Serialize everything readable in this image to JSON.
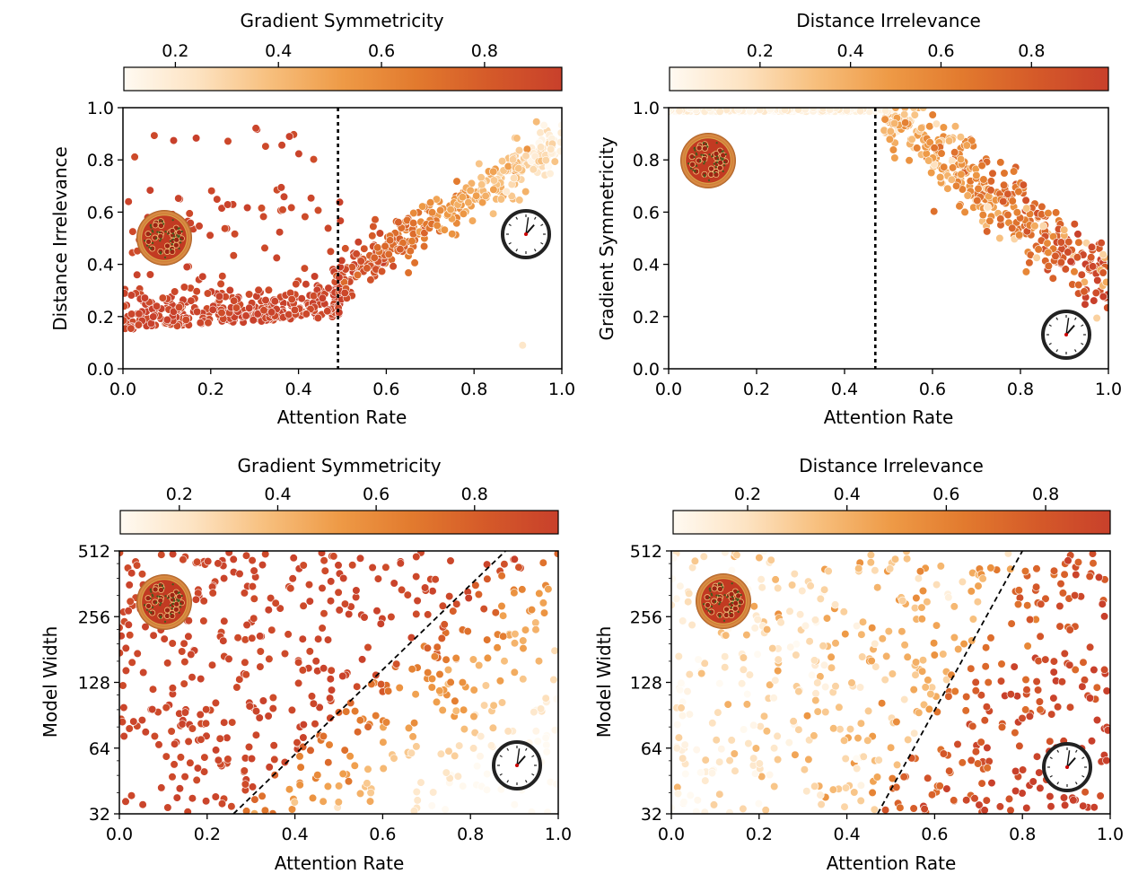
{
  "colormap": {
    "stops": [
      "#fffaf2",
      "#fde3c2",
      "#f7bf7d",
      "#ee9a46",
      "#e27a2e",
      "#d55a29",
      "#c8402b"
    ]
  },
  "chart_data": [
    {
      "type": "scatter",
      "title": "",
      "xlabel": "Attention Rate",
      "ylabel": "Distance Irrelevance",
      "xlim": [
        0.0,
        1.0
      ],
      "ylim": [
        0.0,
        1.0
      ],
      "yscale": "linear",
      "xticks": [
        "0.0",
        "0.2",
        "0.4",
        "0.6",
        "0.8",
        "1.0"
      ],
      "yticks": [
        "0.0",
        "0.2",
        "0.4",
        "0.6",
        "0.8",
        "1.0"
      ],
      "colorbar": {
        "label": "Gradient Symmetricity",
        "range": [
          0.1,
          0.95
        ],
        "ticks": [
          "0.2",
          "0.4",
          "0.6",
          "0.8"
        ]
      },
      "color_variable": "Gradient Symmetricity",
      "boundary": {
        "style": "vertical-dotted",
        "x": 0.49
      },
      "icons": [
        "pizza-icon",
        "clock-icon"
      ],
      "point_count": 780,
      "summary": "For attention rate below ~0.49 distance irrelevance clusters near 0.15-0.3 with high gradient symmetricity (red); above 0.49 distance irrelevance rises from ~0.4 to ~0.95 and gradient symmetricity falls (orange to pale)."
    },
    {
      "type": "scatter",
      "title": "",
      "xlabel": "Attention Rate",
      "ylabel": "Gradient Symmetricity",
      "xlim": [
        0.0,
        1.0
      ],
      "ylim": [
        0.0,
        1.0
      ],
      "yscale": "linear",
      "xticks": [
        "0.0",
        "0.2",
        "0.4",
        "0.6",
        "0.8",
        "1.0"
      ],
      "yticks": [
        "0.0",
        "0.2",
        "0.4",
        "0.6",
        "0.8",
        "1.0"
      ],
      "colorbar": {
        "label": "Distance Irrelevance",
        "range": [
          0.0,
          0.97
        ],
        "ticks": [
          "0.2",
          "0.4",
          "0.6",
          "0.8"
        ]
      },
      "color_variable": "Distance Irrelevance",
      "boundary": {
        "style": "vertical-dotted",
        "x": 0.47
      },
      "icons": [
        "pizza-icon",
        "clock-icon"
      ],
      "point_count": 780,
      "summary": "For attention rate below ~0.47 gradient symmetricity is ~1.0 with low distance irrelevance (pale); above 0.47 gradient symmetricity declines from ~0.95 to ~0.2 while distance irrelevance colors shift to orange-red."
    },
    {
      "type": "scatter",
      "title": "",
      "xlabel": "Attention Rate",
      "ylabel": "Model Width",
      "xlim": [
        0.0,
        1.0
      ],
      "ylim": [
        32,
        512
      ],
      "yscale": "log2",
      "xticks": [
        "0.0",
        "0.2",
        "0.4",
        "0.6",
        "0.8",
        "1.0"
      ],
      "yticks": [
        "32",
        "64",
        "128",
        "256",
        "512"
      ],
      "colorbar": {
        "label": "Gradient Symmetricity",
        "range": [
          0.08,
          0.97
        ],
        "ticks": [
          "0.2",
          "0.4",
          "0.6",
          "0.8"
        ]
      },
      "color_variable": "Gradient Symmetricity",
      "boundary": {
        "style": "dashed-line",
        "from": [
          0.26,
          32
        ],
        "to": [
          0.88,
          512
        ]
      },
      "icons": [
        "pizza-icon",
        "clock-icon"
      ],
      "point_count": 560,
      "summary": "Points left of the dashed diagonal have high gradient symmetricity (red); right of it colors fade to orange and pale toward attention rate 1.0, especially at small widths."
    },
    {
      "type": "scatter",
      "title": "",
      "xlabel": "Attention Rate",
      "ylabel": "Model Width",
      "xlim": [
        0.0,
        1.0
      ],
      "ylim": [
        32,
        512
      ],
      "yscale": "log2",
      "xticks": [
        "0.0",
        "0.2",
        "0.4",
        "0.6",
        "0.8",
        "1.0"
      ],
      "yticks": [
        "32",
        "64",
        "128",
        "256",
        "512"
      ],
      "colorbar": {
        "label": "Distance Irrelevance",
        "range": [
          0.05,
          0.93
        ],
        "ticks": [
          "0.2",
          "0.4",
          "0.6",
          "0.8"
        ]
      },
      "color_variable": "Distance Irrelevance",
      "boundary": {
        "style": "dashed-line",
        "from": [
          0.47,
          32
        ],
        "to": [
          0.8,
          512
        ]
      },
      "icons": [
        "pizza-icon",
        "clock-icon"
      ],
      "point_count": 560,
      "summary": "Points left of the dashed line have low distance irrelevance (pale); right of it colors become orange to red with higher attention rate."
    }
  ]
}
